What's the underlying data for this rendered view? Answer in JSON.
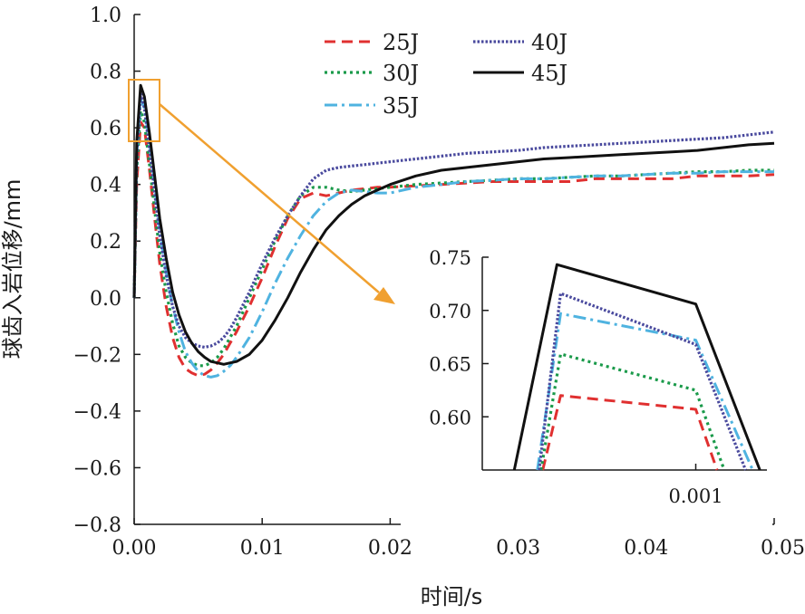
{
  "chart_data": {
    "type": "line",
    "xlabel": "时间/s",
    "ylabel": "球齿入岩位移/mm",
    "xlim": [
      0,
      0.05
    ],
    "ylim": [
      -0.8,
      1.0
    ],
    "x_ticks": [
      0.0,
      0.01,
      0.02,
      0.03,
      0.04,
      0.05
    ],
    "x_tick_labels": [
      "0.00",
      "0.01",
      "0.02",
      "0.03",
      "0.04",
      "0.05"
    ],
    "y_ticks": [
      -0.8,
      -0.6,
      -0.4,
      -0.2,
      0.0,
      0.2,
      0.4,
      0.6,
      0.8,
      1.0
    ],
    "y_tick_labels": [
      "−0.8",
      "−0.6",
      "−0.4",
      "−0.2",
      "0.0",
      "0.2",
      "0.4",
      "0.6",
      "0.8",
      "1.0"
    ],
    "grid": false,
    "legend_position": "top-center",
    "series": [
      {
        "name": "25J",
        "color": "#e03030",
        "dash": "dashed",
        "x": [
          0,
          0.0002,
          0.0005,
          0.0008,
          0.0012,
          0.0016,
          0.002,
          0.0025,
          0.003,
          0.0035,
          0.004,
          0.0045,
          0.005,
          0.0055,
          0.006,
          0.0065,
          0.007,
          0.0075,
          0.008,
          0.009,
          0.01,
          0.011,
          0.012,
          0.013,
          0.014,
          0.015,
          0.016,
          0.017,
          0.018,
          0.019,
          0.02,
          0.022,
          0.024,
          0.026,
          0.028,
          0.03,
          0.032,
          0.034,
          0.036,
          0.038,
          0.04,
          0.042,
          0.044,
          0.046,
          0.048,
          0.05
        ],
        "y": [
          0,
          0.4,
          0.62,
          0.6,
          0.45,
          0.28,
          0.12,
          -0.03,
          -0.14,
          -0.21,
          -0.25,
          -0.265,
          -0.275,
          -0.27,
          -0.255,
          -0.23,
          -0.2,
          -0.16,
          -0.12,
          -0.03,
          0.07,
          0.18,
          0.28,
          0.35,
          0.37,
          0.36,
          0.37,
          0.38,
          0.385,
          0.39,
          0.39,
          0.395,
          0.4,
          0.405,
          0.41,
          0.41,
          0.41,
          0.41,
          0.42,
          0.42,
          0.42,
          0.42,
          0.43,
          0.43,
          0.43,
          0.435
        ]
      },
      {
        "name": "30J",
        "color": "#1a9a4a",
        "dash": "dotted",
        "x": [
          0,
          0.0002,
          0.0005,
          0.0008,
          0.0012,
          0.0016,
          0.002,
          0.0025,
          0.003,
          0.0035,
          0.004,
          0.0045,
          0.005,
          0.0055,
          0.006,
          0.0065,
          0.007,
          0.0075,
          0.008,
          0.009,
          0.01,
          0.011,
          0.012,
          0.013,
          0.014,
          0.015,
          0.016,
          0.017,
          0.018,
          0.019,
          0.02,
          0.022,
          0.024,
          0.026,
          0.028,
          0.03,
          0.032,
          0.034,
          0.036,
          0.038,
          0.04,
          0.042,
          0.044,
          0.046,
          0.048,
          0.05
        ],
        "y": [
          0,
          0.45,
          0.66,
          0.62,
          0.47,
          0.31,
          0.16,
          0.02,
          -0.09,
          -0.17,
          -0.21,
          -0.23,
          -0.24,
          -0.24,
          -0.23,
          -0.21,
          -0.18,
          -0.14,
          -0.1,
          0.0,
          0.1,
          0.2,
          0.29,
          0.36,
          0.39,
          0.39,
          0.38,
          0.375,
          0.38,
          0.385,
          0.39,
          0.4,
          0.405,
          0.41,
          0.415,
          0.42,
          0.42,
          0.425,
          0.43,
          0.43,
          0.435,
          0.44,
          0.445,
          0.445,
          0.45,
          0.45
        ]
      },
      {
        "name": "35J",
        "color": "#4fb3e0",
        "dash": "dashdot",
        "x": [
          0,
          0.0002,
          0.0005,
          0.0008,
          0.0012,
          0.0016,
          0.002,
          0.0025,
          0.003,
          0.0035,
          0.004,
          0.0045,
          0.005,
          0.0055,
          0.006,
          0.0065,
          0.007,
          0.0075,
          0.008,
          0.009,
          0.01,
          0.011,
          0.012,
          0.013,
          0.014,
          0.015,
          0.016,
          0.017,
          0.018,
          0.019,
          0.02,
          0.022,
          0.024,
          0.026,
          0.028,
          0.03,
          0.032,
          0.034,
          0.036,
          0.038,
          0.04,
          0.042,
          0.044,
          0.046,
          0.048,
          0.05
        ],
        "y": [
          0,
          0.5,
          0.7,
          0.67,
          0.55,
          0.4,
          0.24,
          0.09,
          -0.03,
          -0.12,
          -0.19,
          -0.23,
          -0.26,
          -0.275,
          -0.28,
          -0.275,
          -0.26,
          -0.24,
          -0.21,
          -0.14,
          -0.05,
          0.05,
          0.14,
          0.22,
          0.29,
          0.34,
          0.37,
          0.38,
          0.375,
          0.37,
          0.37,
          0.39,
          0.4,
          0.41,
          0.415,
          0.42,
          0.42,
          0.425,
          0.43,
          0.43,
          0.435,
          0.44,
          0.44,
          0.445,
          0.445,
          0.445
        ]
      },
      {
        "name": "40J",
        "color": "#4a4a9e",
        "dash": "dotted-dense",
        "x": [
          0,
          0.0002,
          0.0005,
          0.0008,
          0.0012,
          0.0016,
          0.002,
          0.0025,
          0.003,
          0.0035,
          0.004,
          0.0045,
          0.005,
          0.0055,
          0.006,
          0.0065,
          0.007,
          0.0075,
          0.008,
          0.009,
          0.01,
          0.011,
          0.012,
          0.013,
          0.014,
          0.015,
          0.016,
          0.017,
          0.018,
          0.019,
          0.02,
          0.022,
          0.024,
          0.026,
          0.028,
          0.03,
          0.032,
          0.034,
          0.036,
          0.038,
          0.04,
          0.042,
          0.044,
          0.046,
          0.048,
          0.05
        ],
        "y": [
          0,
          0.5,
          0.72,
          0.67,
          0.52,
          0.37,
          0.22,
          0.08,
          -0.03,
          -0.1,
          -0.14,
          -0.16,
          -0.17,
          -0.175,
          -0.17,
          -0.16,
          -0.14,
          -0.11,
          -0.07,
          0.02,
          0.12,
          0.21,
          0.29,
          0.36,
          0.42,
          0.45,
          0.46,
          0.465,
          0.47,
          0.475,
          0.48,
          0.49,
          0.5,
          0.51,
          0.515,
          0.52,
          0.53,
          0.535,
          0.54,
          0.545,
          0.55,
          0.555,
          0.56,
          0.565,
          0.575,
          0.585
        ]
      },
      {
        "name": "45J",
        "color": "#111111",
        "dash": "solid",
        "x": [
          0,
          0.0002,
          0.0005,
          0.0008,
          0.0012,
          0.0016,
          0.002,
          0.0025,
          0.003,
          0.0035,
          0.004,
          0.0045,
          0.005,
          0.0055,
          0.006,
          0.0065,
          0.007,
          0.0075,
          0.008,
          0.009,
          0.01,
          0.011,
          0.012,
          0.013,
          0.014,
          0.015,
          0.016,
          0.017,
          0.018,
          0.019,
          0.02,
          0.022,
          0.024,
          0.026,
          0.028,
          0.03,
          0.032,
          0.034,
          0.036,
          0.038,
          0.04,
          0.042,
          0.044,
          0.046,
          0.048,
          0.05
        ],
        "y": [
          0,
          0.55,
          0.75,
          0.71,
          0.58,
          0.43,
          0.28,
          0.14,
          0.02,
          -0.06,
          -0.12,
          -0.16,
          -0.19,
          -0.21,
          -0.225,
          -0.23,
          -0.235,
          -0.23,
          -0.225,
          -0.2,
          -0.15,
          -0.08,
          0.0,
          0.09,
          0.17,
          0.24,
          0.29,
          0.33,
          0.36,
          0.38,
          0.4,
          0.43,
          0.45,
          0.46,
          0.47,
          0.48,
          0.49,
          0.495,
          0.5,
          0.505,
          0.51,
          0.515,
          0.52,
          0.53,
          0.54,
          0.545
        ]
      }
    ],
    "inset": {
      "xlim": [
        0.0004,
        0.0012
      ],
      "ylim": [
        0.55,
        0.75
      ],
      "x_ticks": [
        0.001
      ],
      "x_tick_labels": [
        "0.001"
      ],
      "y_ticks": [
        0.6,
        0.65,
        0.7,
        0.75
      ],
      "y_tick_labels": [
        "0.60",
        "0.65",
        "0.70",
        "0.75"
      ],
      "series": [
        {
          "name": "25J",
          "x": [
            0.00057,
            0.00062,
            0.001,
            0.00106
          ],
          "y": [
            0.55,
            0.62,
            0.607,
            0.55
          ]
        },
        {
          "name": "30J",
          "x": [
            0.000565,
            0.00062,
            0.001,
            0.00108
          ],
          "y": [
            0.55,
            0.659,
            0.625,
            0.55
          ]
        },
        {
          "name": "35J",
          "x": [
            0.000555,
            0.00062,
            0.001,
            0.00116
          ],
          "y": [
            0.55,
            0.697,
            0.672,
            0.55
          ]
        },
        {
          "name": "40J",
          "x": [
            0.00056,
            0.00062,
            0.001,
            0.00114
          ],
          "y": [
            0.55,
            0.716,
            0.668,
            0.55
          ]
        },
        {
          "name": "45J",
          "x": [
            0.00049,
            0.00061,
            0.001,
            0.00118
          ],
          "y": [
            0.55,
            0.743,
            0.706,
            0.55
          ]
        }
      ]
    }
  }
}
